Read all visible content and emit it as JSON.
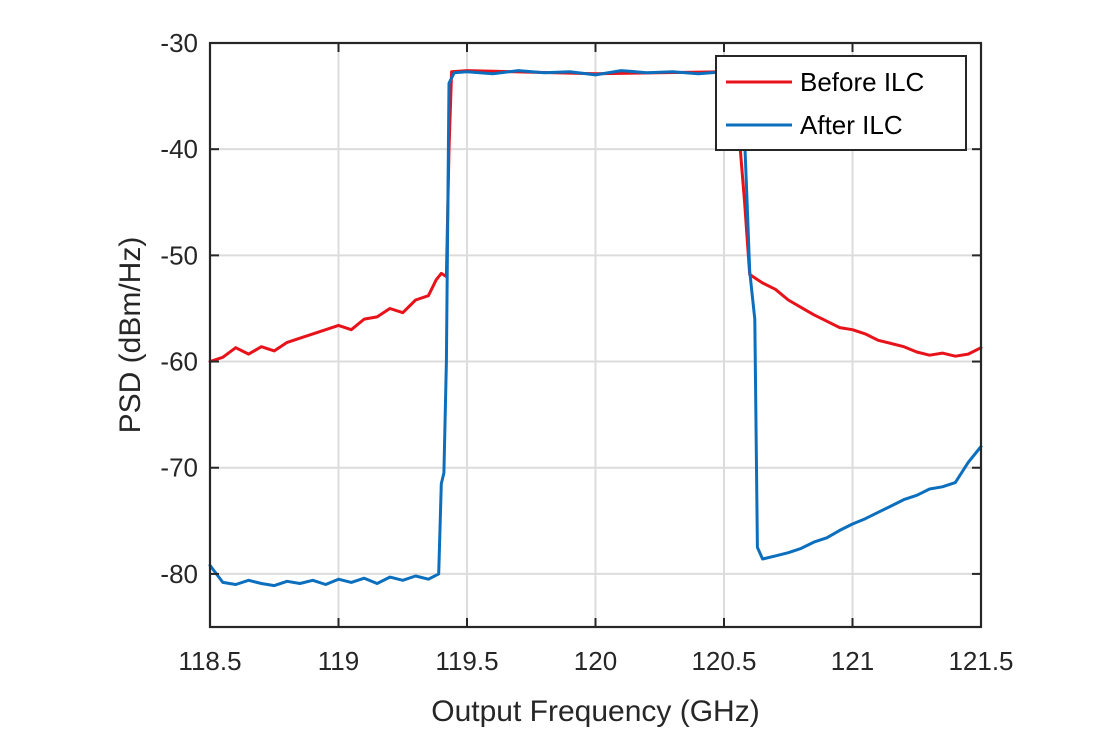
{
  "chart_data": {
    "type": "line",
    "title": "",
    "xlabel": "Output Frequency (GHz)",
    "ylabel": "PSD (dBm/Hz)",
    "xlim": [
      118.5,
      121.5
    ],
    "ylim": [
      -85,
      -30
    ],
    "xticks": [
      118.5,
      119,
      119.5,
      120,
      120.5,
      121,
      121.5
    ],
    "xtick_labels": [
      "118.5",
      "119",
      "119.5",
      "120",
      "120.5",
      "121",
      "121.5"
    ],
    "yticks": [
      -80,
      -70,
      -60,
      -50,
      -40,
      -30
    ],
    "ytick_labels": [
      "-80",
      "-70",
      "-60",
      "-50",
      "-40",
      "-30"
    ],
    "grid": true,
    "legend_position": "top-right",
    "series": [
      {
        "name": "Before ILC",
        "color": "#e8121a",
        "x": [
          118.5,
          118.55,
          118.6,
          118.65,
          118.7,
          118.75,
          118.8,
          118.85,
          118.9,
          118.95,
          119.0,
          119.05,
          119.1,
          119.15,
          119.2,
          119.25,
          119.3,
          119.35,
          119.38,
          119.4,
          119.42,
          119.43,
          119.44,
          119.5,
          120.0,
          120.5,
          120.55,
          120.58,
          120.6,
          120.65,
          120.7,
          120.75,
          120.8,
          120.85,
          120.9,
          120.95,
          121.0,
          121.05,
          121.1,
          121.15,
          121.2,
          121.25,
          121.3,
          121.35,
          121.4,
          121.45,
          121.5
        ],
        "y": [
          -60,
          -59.6,
          -58.7,
          -59.3,
          -58.6,
          -59.0,
          -58.2,
          -57.8,
          -57.4,
          -57.0,
          -56.6,
          -57.0,
          -56.0,
          -55.8,
          -55.0,
          -55.4,
          -54.2,
          -53.8,
          -52.3,
          -51.7,
          -52.0,
          -40.0,
          -32.7,
          -32.6,
          -32.9,
          -32.7,
          -36.0,
          -45.0,
          -51.8,
          -52.6,
          -53.2,
          -54.2,
          -54.9,
          -55.6,
          -56.2,
          -56.8,
          -57.0,
          -57.4,
          -58.0,
          -58.3,
          -58.6,
          -59.1,
          -59.4,
          -59.2,
          -59.5,
          -59.3,
          -58.7
        ]
      },
      {
        "name": "After ILC",
        "color": "#0c6fbd",
        "x": [
          118.5,
          118.55,
          118.6,
          118.65,
          118.7,
          118.75,
          118.8,
          118.85,
          118.9,
          118.95,
          119.0,
          119.05,
          119.1,
          119.15,
          119.2,
          119.25,
          119.3,
          119.35,
          119.39,
          119.4,
          119.41,
          119.42,
          119.43,
          119.45,
          119.5,
          119.6,
          119.7,
          119.8,
          119.9,
          120.0,
          120.1,
          120.2,
          120.3,
          120.4,
          120.5,
          120.55,
          120.57,
          120.58,
          120.59,
          120.6,
          120.62,
          120.63,
          120.65,
          120.7,
          120.75,
          120.8,
          120.85,
          120.9,
          120.95,
          121.0,
          121.05,
          121.1,
          121.15,
          121.2,
          121.25,
          121.3,
          121.35,
          121.4,
          121.45,
          121.5
        ],
        "y": [
          -79.2,
          -80.8,
          -81.0,
          -80.6,
          -80.9,
          -81.1,
          -80.7,
          -80.9,
          -80.6,
          -81.0,
          -80.5,
          -80.8,
          -80.4,
          -80.9,
          -80.3,
          -80.6,
          -80.2,
          -80.5,
          -80.0,
          -71.5,
          -70.5,
          -60.0,
          -33.8,
          -32.8,
          -32.7,
          -32.9,
          -32.6,
          -32.8,
          -32.7,
          -33.0,
          -32.6,
          -32.8,
          -32.7,
          -32.9,
          -32.7,
          -32.8,
          -32.9,
          -39.0,
          -45.0,
          -51.5,
          -56.0,
          -77.5,
          -78.6,
          -78.3,
          -78.0,
          -77.6,
          -77.0,
          -76.6,
          -75.9,
          -75.3,
          -74.8,
          -74.2,
          -73.6,
          -73.0,
          -72.6,
          -72.0,
          -71.8,
          -71.4,
          -69.5,
          -68.0
        ]
      }
    ]
  }
}
